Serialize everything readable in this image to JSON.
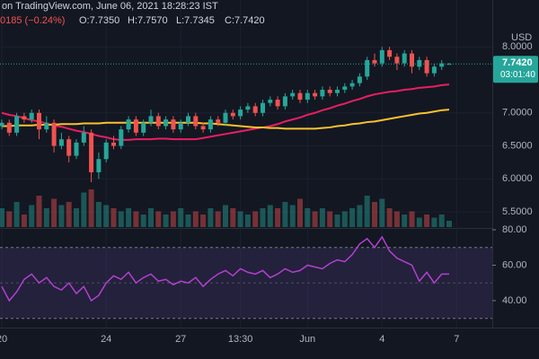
{
  "header": {
    "source": "on TradingView.com, June 06, 2021 18:28:23 IST",
    "change": "0185 (−0.24%)",
    "ohlc": [
      "O:7.7350",
      "H:7.7570",
      "L:7.7345",
      "C:7.7420"
    ]
  },
  "chart_data": {
    "type": "candlestick",
    "currency": "USD",
    "open": [
      6.8,
      6.85,
      6.7,
      6.95,
      6.9,
      7.0,
      6.75,
      6.85,
      6.5,
      6.6,
      6.35,
      6.55,
      6.7,
      6.1,
      6.3,
      6.55,
      6.5,
      6.75,
      6.9,
      6.7,
      6.85,
      6.95,
      6.8,
      6.9,
      6.75,
      6.85,
      6.95,
      6.8,
      6.75,
      6.9,
      6.85,
      7.0,
      6.95,
      7.05,
      7.1,
      7.0,
      7.15,
      7.2,
      7.1,
      7.25,
      7.3,
      7.2,
      7.3,
      7.25,
      7.35,
      7.3,
      7.35,
      7.4,
      7.45,
      7.55,
      7.8,
      7.75,
      7.95,
      7.85,
      7.75,
      7.9,
      7.7,
      7.8,
      7.6,
      7.7,
      7.735
    ],
    "high": [
      6.9,
      6.9,
      7.0,
      7.0,
      7.05,
      7.05,
      6.95,
      6.9,
      6.7,
      6.65,
      6.6,
      6.8,
      6.75,
      6.4,
      6.6,
      6.65,
      6.8,
      6.95,
      6.95,
      6.9,
      7.05,
      7.0,
      6.95,
      6.95,
      6.9,
      7.0,
      7.0,
      6.85,
      6.95,
      6.95,
      7.05,
      7.05,
      7.1,
      7.15,
      7.15,
      7.2,
      7.25,
      7.25,
      7.3,
      7.35,
      7.35,
      7.35,
      7.35,
      7.4,
      7.4,
      7.4,
      7.45,
      7.5,
      7.6,
      7.85,
      7.9,
      8.0,
      8.0,
      7.9,
      7.95,
      7.95,
      7.85,
      7.85,
      7.75,
      7.8,
      7.757
    ],
    "low": [
      6.75,
      6.65,
      6.65,
      6.85,
      6.85,
      6.6,
      6.7,
      6.4,
      6.45,
      6.25,
      6.3,
      6.5,
      5.95,
      6.0,
      6.25,
      6.45,
      6.45,
      6.7,
      6.65,
      6.65,
      6.8,
      6.75,
      6.75,
      6.7,
      6.7,
      6.8,
      6.75,
      6.7,
      6.7,
      6.8,
      6.8,
      6.9,
      6.9,
      7.0,
      6.95,
      6.95,
      7.1,
      7.05,
      7.05,
      7.2,
      7.15,
      7.15,
      7.2,
      7.2,
      7.25,
      7.25,
      7.3,
      7.35,
      7.4,
      7.5,
      7.7,
      7.7,
      7.8,
      7.65,
      7.7,
      7.6,
      7.65,
      7.55,
      7.55,
      7.65,
      7.7345
    ],
    "close": [
      6.85,
      6.7,
      6.95,
      6.9,
      7.0,
      6.75,
      6.85,
      6.5,
      6.6,
      6.35,
      6.55,
      6.7,
      6.1,
      6.3,
      6.55,
      6.5,
      6.75,
      6.9,
      6.7,
      6.85,
      6.95,
      6.8,
      6.9,
      6.75,
      6.85,
      6.95,
      6.8,
      6.75,
      6.9,
      6.85,
      7.0,
      6.95,
      7.05,
      7.1,
      7.0,
      7.15,
      7.2,
      7.1,
      7.25,
      7.3,
      7.2,
      7.3,
      7.25,
      7.35,
      7.3,
      7.35,
      7.4,
      7.45,
      7.55,
      7.8,
      7.75,
      7.95,
      7.85,
      7.75,
      7.9,
      7.7,
      7.8,
      7.6,
      7.7,
      7.75,
      7.742
    ],
    "up_color": "#26a69a",
    "down_color": "#ef5350",
    "ylim": [
      5.27,
      8.71
    ],
    "yticks": [
      {
        "value": 8,
        "label": "8.0000"
      },
      {
        "value": 7,
        "label": "7.0000"
      },
      {
        "value": 6.5,
        "label": "6.5000"
      },
      {
        "value": 6,
        "label": "6.0000"
      },
      {
        "value": 5.5,
        "label": "5.5000"
      }
    ],
    "xticks": [
      {
        "value": 0,
        "label": "20"
      },
      {
        "value": 14,
        "label": "24"
      },
      {
        "value": 24,
        "label": "27"
      },
      {
        "value": 32,
        "label": "13:30"
      },
      {
        "value": 41,
        "label": "Jun"
      },
      {
        "value": 51,
        "label": "4"
      },
      {
        "value": 61,
        "label": "7"
      }
    ],
    "volume": [
      30,
      25,
      40,
      20,
      35,
      50,
      30,
      45,
      35,
      40,
      30,
      55,
      60,
      40,
      35,
      30,
      25,
      30,
      25,
      20,
      30,
      25,
      20,
      25,
      30,
      20,
      25,
      20,
      30,
      25,
      35,
      30,
      25,
      20,
      25,
      30,
      35,
      30,
      40,
      35,
      45,
      30,
      25,
      30,
      25,
      20,
      25,
      30,
      35,
      50,
      40,
      45,
      30,
      25,
      20,
      25,
      15,
      20,
      15,
      20,
      10
    ],
    "vlim": [
      0,
      100
    ],
    "ma": [
      {
        "color": "#e91e63",
        "values": [
          7.0,
          6.97,
          6.95,
          6.92,
          6.89,
          6.87,
          6.84,
          6.81,
          6.79,
          6.76,
          6.73,
          6.71,
          6.68,
          6.65,
          6.63,
          6.6,
          6.59,
          6.59,
          6.6,
          6.6,
          6.6,
          6.61,
          6.61,
          6.6,
          6.6,
          6.6,
          6.6,
          6.62,
          6.64,
          6.66,
          6.68,
          6.7,
          6.72,
          6.74,
          6.76,
          6.78,
          6.8,
          6.83,
          6.87,
          6.9,
          6.93,
          6.97,
          7.0,
          7.04,
          7.07,
          7.11,
          7.14,
          7.18,
          7.21,
          7.25,
          7.28,
          7.3,
          7.32,
          7.33,
          7.35,
          7.36,
          7.38,
          7.39,
          7.4,
          7.42,
          7.43
        ]
      },
      {
        "color": "#f9c22e",
        "values": [
          6.8,
          6.8,
          6.81,
          6.81,
          6.81,
          6.82,
          6.82,
          6.82,
          6.83,
          6.83,
          6.83,
          6.84,
          6.84,
          6.84,
          6.85,
          6.85,
          6.85,
          6.85,
          6.85,
          6.85,
          6.85,
          6.85,
          6.85,
          6.85,
          6.85,
          6.85,
          6.85,
          6.84,
          6.84,
          6.83,
          6.82,
          6.81,
          6.8,
          6.79,
          6.78,
          6.78,
          6.77,
          6.77,
          6.76,
          6.76,
          6.76,
          6.76,
          6.76,
          6.77,
          6.78,
          6.8,
          6.81,
          6.83,
          6.84,
          6.86,
          6.87,
          6.89,
          6.91,
          6.93,
          6.95,
          6.97,
          6.99,
          7.0,
          7.02,
          7.04,
          7.05
        ]
      }
    ],
    "last_price": {
      "value": 7.742,
      "label": "7.7420"
    },
    "countdown": "03:01:40",
    "rsi": {
      "color": "#b43fd1",
      "ylim": [
        24.8,
        80.5
      ],
      "values": [
        48,
        40,
        45,
        52,
        55,
        50,
        53,
        48,
        46,
        50,
        44,
        48,
        40,
        43,
        50,
        54,
        52,
        56,
        50,
        53,
        55,
        51,
        52,
        49,
        51,
        50,
        53,
        48,
        52,
        55,
        57,
        54,
        58,
        56,
        55,
        57,
        53,
        55,
        58,
        56,
        57,
        60,
        59,
        58,
        61,
        63,
        62,
        66,
        72,
        75,
        70,
        76,
        68,
        64,
        62,
        60,
        51,
        56,
        50,
        55,
        55
      ],
      "yticks": [
        {
          "value": 80,
          "label": "80.00"
        },
        {
          "value": 60,
          "label": "60.00"
        },
        {
          "value": 40,
          "label": "40.00"
        }
      ],
      "bands": [
        70,
        30
      ],
      "middle": 50
    }
  }
}
